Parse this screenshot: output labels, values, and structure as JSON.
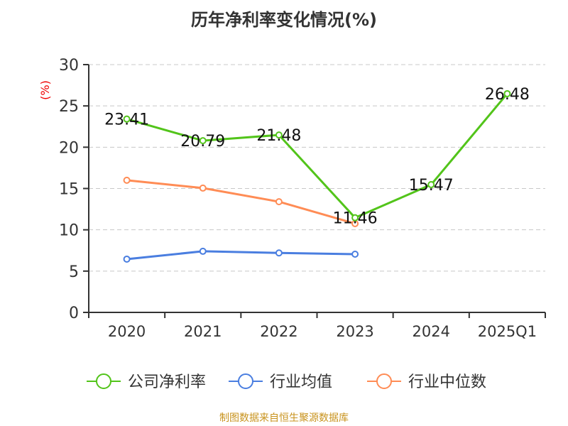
{
  "chart_data": {
    "type": "line",
    "title": "历年净利率变化情况(%)",
    "ylabel": "(%)",
    "xlabel": "",
    "ylim": [
      0,
      30
    ],
    "yticks": [
      0,
      5,
      10,
      15,
      20,
      25,
      30
    ],
    "categories": [
      "2020",
      "2021",
      "2022",
      "2023",
      "2024",
      "2025Q1"
    ],
    "grid": true,
    "legend_position": "bottom",
    "series": [
      {
        "name": "公司净利率",
        "color": "#52c41a",
        "values": [
          23.41,
          20.79,
          21.48,
          11.46,
          15.47,
          26.48
        ],
        "labels": [
          "23.41",
          "20.79",
          "21.48",
          "11.46",
          "15.47",
          "26.48"
        ]
      },
      {
        "name": "行业均值",
        "color": "#4a7ee0",
        "values": [
          6.45,
          7.4,
          7.2,
          7.05,
          null,
          null
        ]
      },
      {
        "name": "行业中位数",
        "color": "#ff8c55",
        "values": [
          16.0,
          15.05,
          13.4,
          10.75,
          null,
          null
        ]
      }
    ]
  },
  "source": "制图数据来自恒生聚源数据库"
}
